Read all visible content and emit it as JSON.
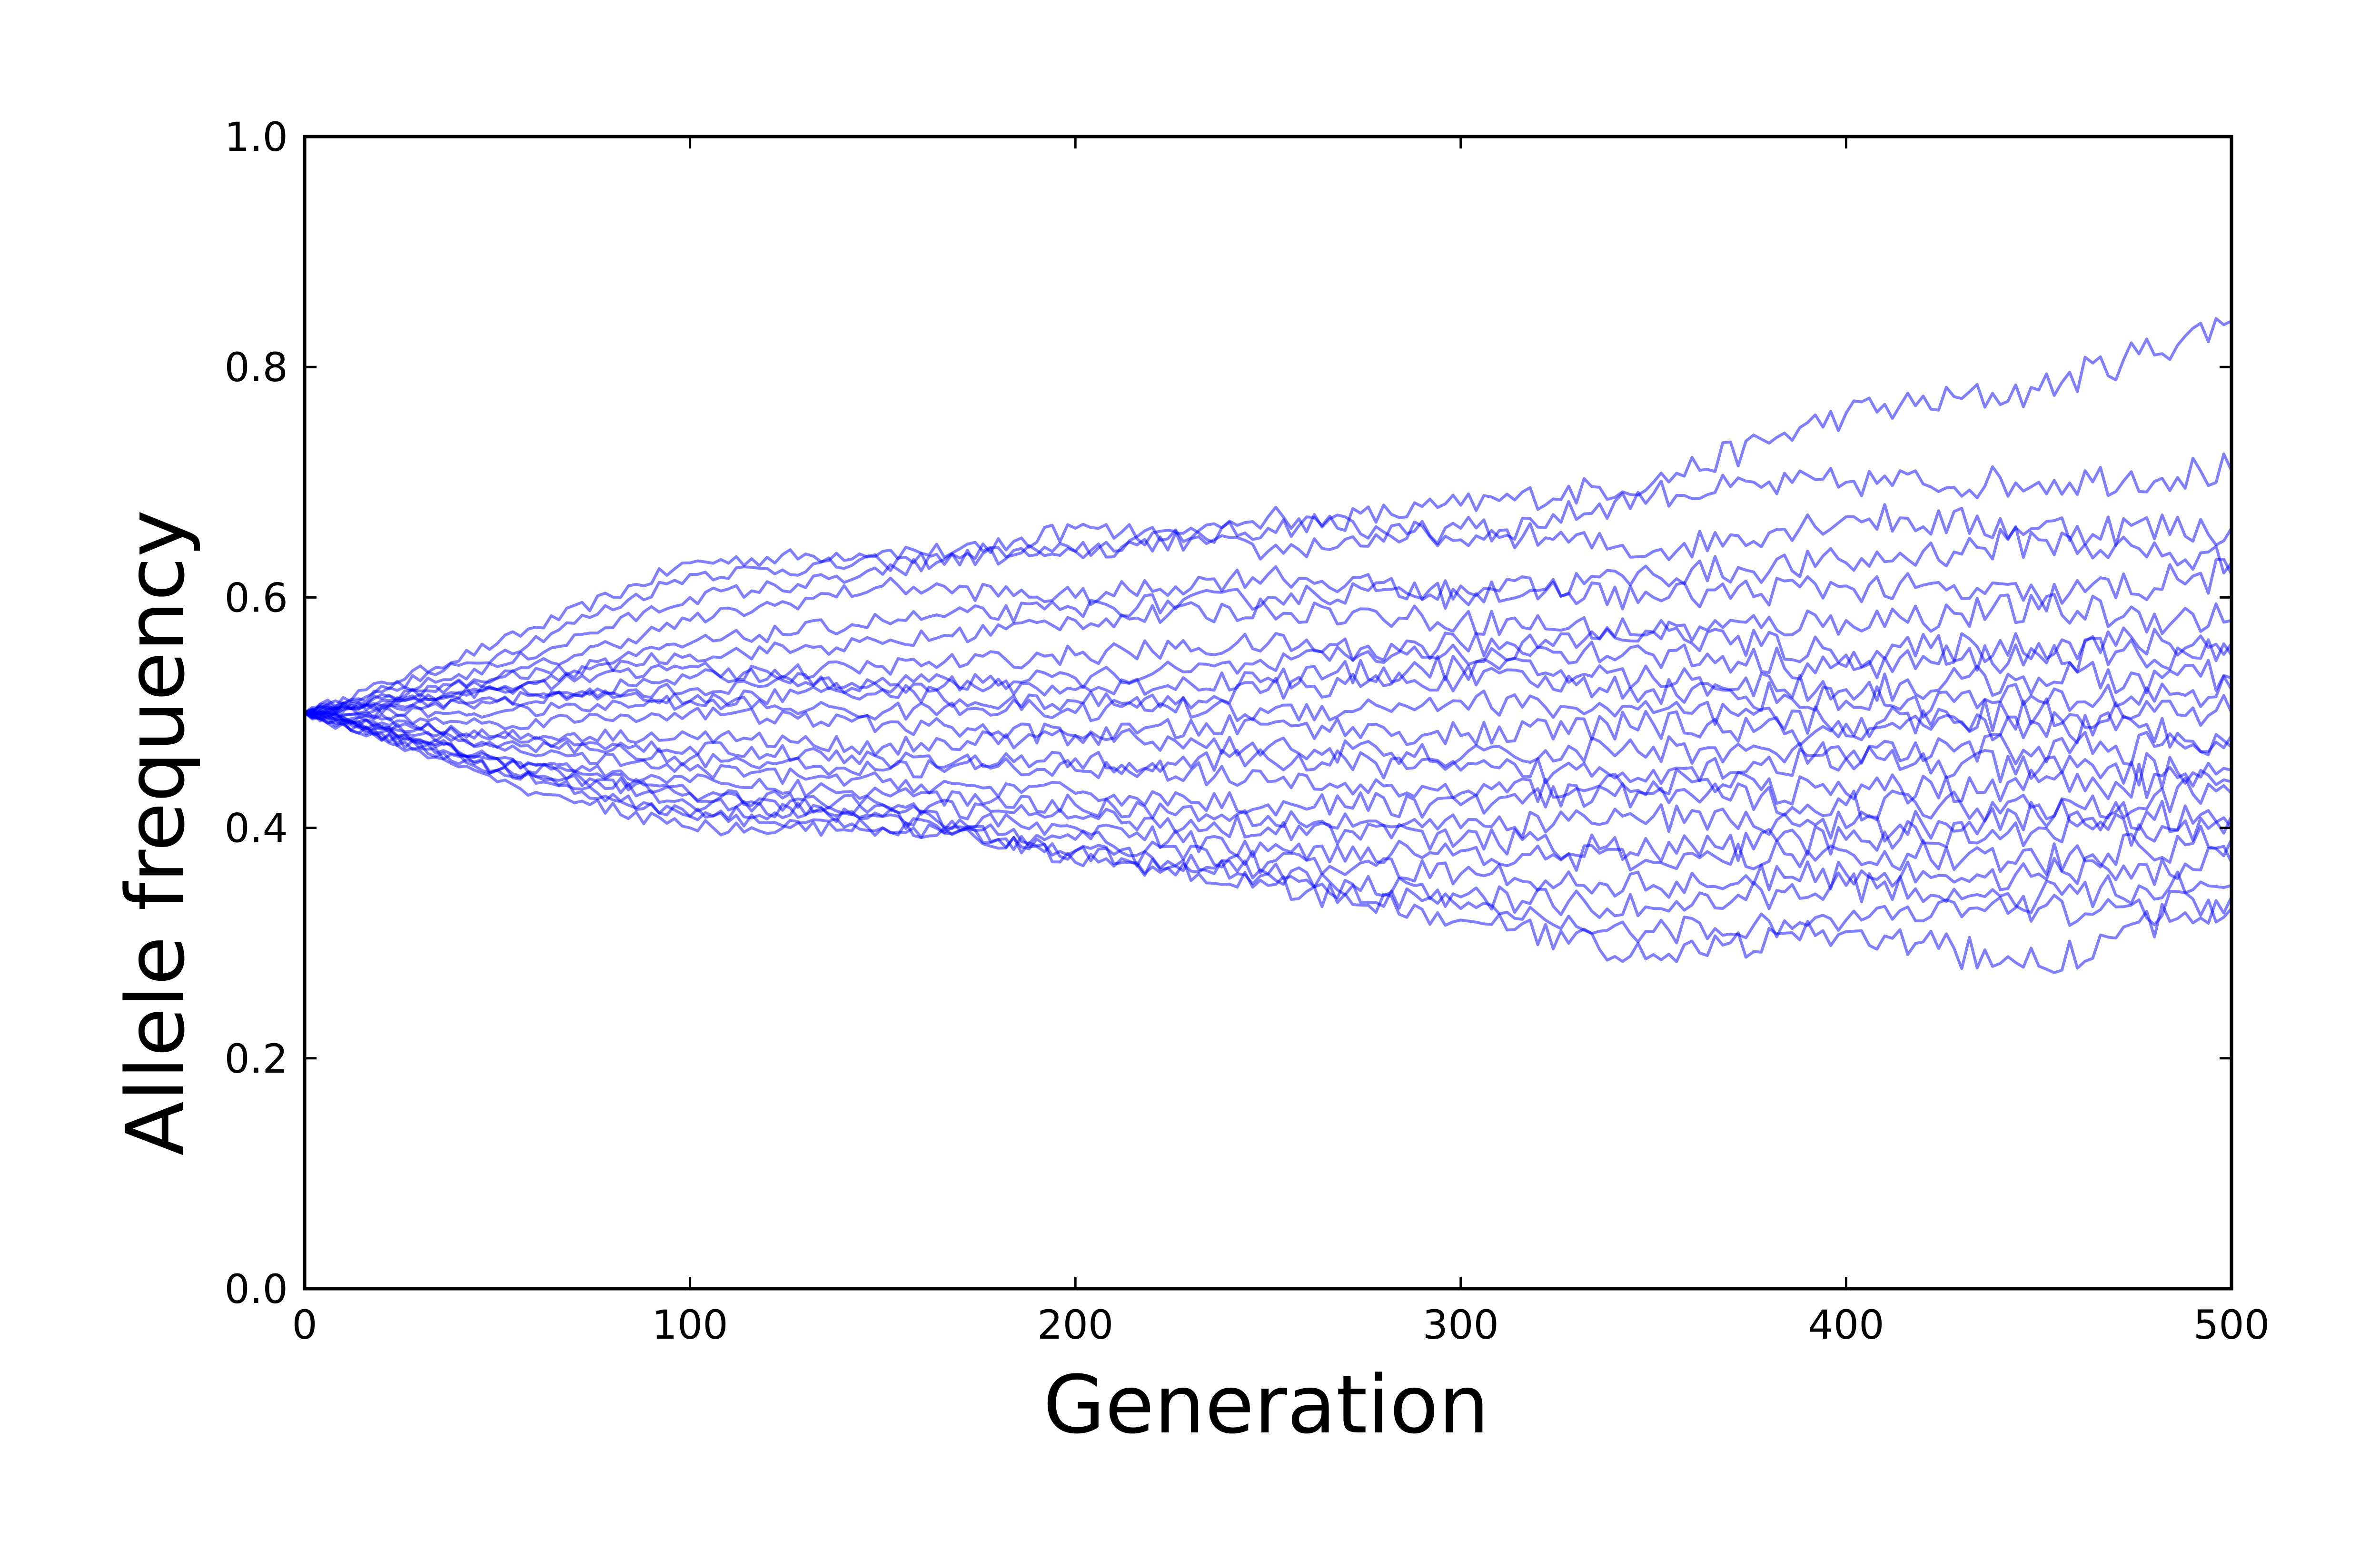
{
  "chart_data": {
    "type": "line",
    "title": "",
    "xlabel": "Generation",
    "ylabel": "Allele frequency",
    "xlim": [
      0,
      500
    ],
    "ylim": [
      0.0,
      1.0
    ],
    "x_ticks": [
      "0",
      "100",
      "200",
      "300",
      "400",
      "500"
    ],
    "y_ticks": [
      "0.0",
      "0.2",
      "0.4",
      "0.6",
      "0.8",
      "1.0"
    ],
    "grid": false,
    "legend": "none",
    "line_color": "#0000ff",
    "line_alpha": 0.5,
    "x": [
      0,
      50,
      100,
      150,
      200,
      250,
      300,
      350,
      400,
      450,
      500
    ],
    "series": [
      {
        "values": [
          0.5,
          0.56,
          0.63,
          0.64,
          0.64,
          0.66,
          0.68,
          0.7,
          0.76,
          0.78,
          0.84
        ]
      },
      {
        "values": [
          0.5,
          0.55,
          0.62,
          0.63,
          0.64,
          0.67,
          0.65,
          0.69,
          0.7,
          0.7,
          0.71
        ]
      },
      {
        "values": [
          0.5,
          0.54,
          0.6,
          0.62,
          0.66,
          0.64,
          0.66,
          0.64,
          0.67,
          0.66,
          0.66
        ]
      },
      {
        "values": [
          0.5,
          0.53,
          0.58,
          0.61,
          0.6,
          0.62,
          0.6,
          0.62,
          0.63,
          0.65,
          0.63
        ]
      },
      {
        "values": [
          0.5,
          0.52,
          0.56,
          0.58,
          0.59,
          0.6,
          0.61,
          0.6,
          0.61,
          0.6,
          0.62
        ]
      },
      {
        "values": [
          0.5,
          0.53,
          0.55,
          0.56,
          0.58,
          0.59,
          0.58,
          0.57,
          0.58,
          0.59,
          0.58
        ]
      },
      {
        "values": [
          0.5,
          0.51,
          0.53,
          0.54,
          0.55,
          0.56,
          0.55,
          0.57,
          0.55,
          0.56,
          0.56
        ]
      },
      {
        "values": [
          0.5,
          0.52,
          0.54,
          0.52,
          0.53,
          0.54,
          0.56,
          0.55,
          0.54,
          0.55,
          0.55
        ]
      },
      {
        "values": [
          0.5,
          0.51,
          0.52,
          0.53,
          0.52,
          0.53,
          0.54,
          0.53,
          0.52,
          0.53,
          0.53
        ]
      },
      {
        "values": [
          0.5,
          0.52,
          0.51,
          0.52,
          0.5,
          0.52,
          0.53,
          0.52,
          0.51,
          0.51,
          0.52
        ]
      },
      {
        "values": [
          0.5,
          0.5,
          0.51,
          0.5,
          0.51,
          0.5,
          0.51,
          0.5,
          0.49,
          0.5,
          0.5
        ]
      },
      {
        "values": [
          0.5,
          0.49,
          0.5,
          0.49,
          0.48,
          0.49,
          0.48,
          0.49,
          0.48,
          0.49,
          0.48
        ]
      },
      {
        "values": [
          0.5,
          0.48,
          0.48,
          0.47,
          0.48,
          0.47,
          0.46,
          0.47,
          0.46,
          0.47,
          0.47
        ]
      },
      {
        "values": [
          0.5,
          0.47,
          0.47,
          0.46,
          0.45,
          0.46,
          0.45,
          0.45,
          0.46,
          0.45,
          0.45
        ]
      },
      {
        "values": [
          0.5,
          0.48,
          0.46,
          0.45,
          0.46,
          0.44,
          0.43,
          0.44,
          0.43,
          0.44,
          0.44
        ]
      },
      {
        "values": [
          0.5,
          0.47,
          0.45,
          0.44,
          0.43,
          0.42,
          0.42,
          0.43,
          0.42,
          0.42,
          0.43
        ]
      },
      {
        "values": [
          0.5,
          0.46,
          0.44,
          0.43,
          0.42,
          0.41,
          0.4,
          0.41,
          0.4,
          0.41,
          0.41
        ]
      },
      {
        "values": [
          0.5,
          0.45,
          0.43,
          0.42,
          0.41,
          0.4,
          0.39,
          0.38,
          0.39,
          0.4,
          0.4
        ]
      },
      {
        "values": [
          0.5,
          0.46,
          0.42,
          0.41,
          0.4,
          0.38,
          0.38,
          0.37,
          0.38,
          0.37,
          0.39
        ]
      },
      {
        "values": [
          0.5,
          0.45,
          0.41,
          0.4,
          0.39,
          0.37,
          0.36,
          0.35,
          0.36,
          0.36,
          0.37
        ]
      },
      {
        "values": [
          0.5,
          0.44,
          0.4,
          0.4,
          0.38,
          0.36,
          0.34,
          0.33,
          0.35,
          0.34,
          0.35
        ]
      },
      {
        "values": [
          0.5,
          0.45,
          0.41,
          0.42,
          0.37,
          0.36,
          0.33,
          0.31,
          0.32,
          0.33,
          0.33
        ]
      },
      {
        "values": [
          0.5,
          0.46,
          0.43,
          0.41,
          0.38,
          0.35,
          0.32,
          0.29,
          0.31,
          0.28,
          0.34
        ]
      }
    ]
  }
}
